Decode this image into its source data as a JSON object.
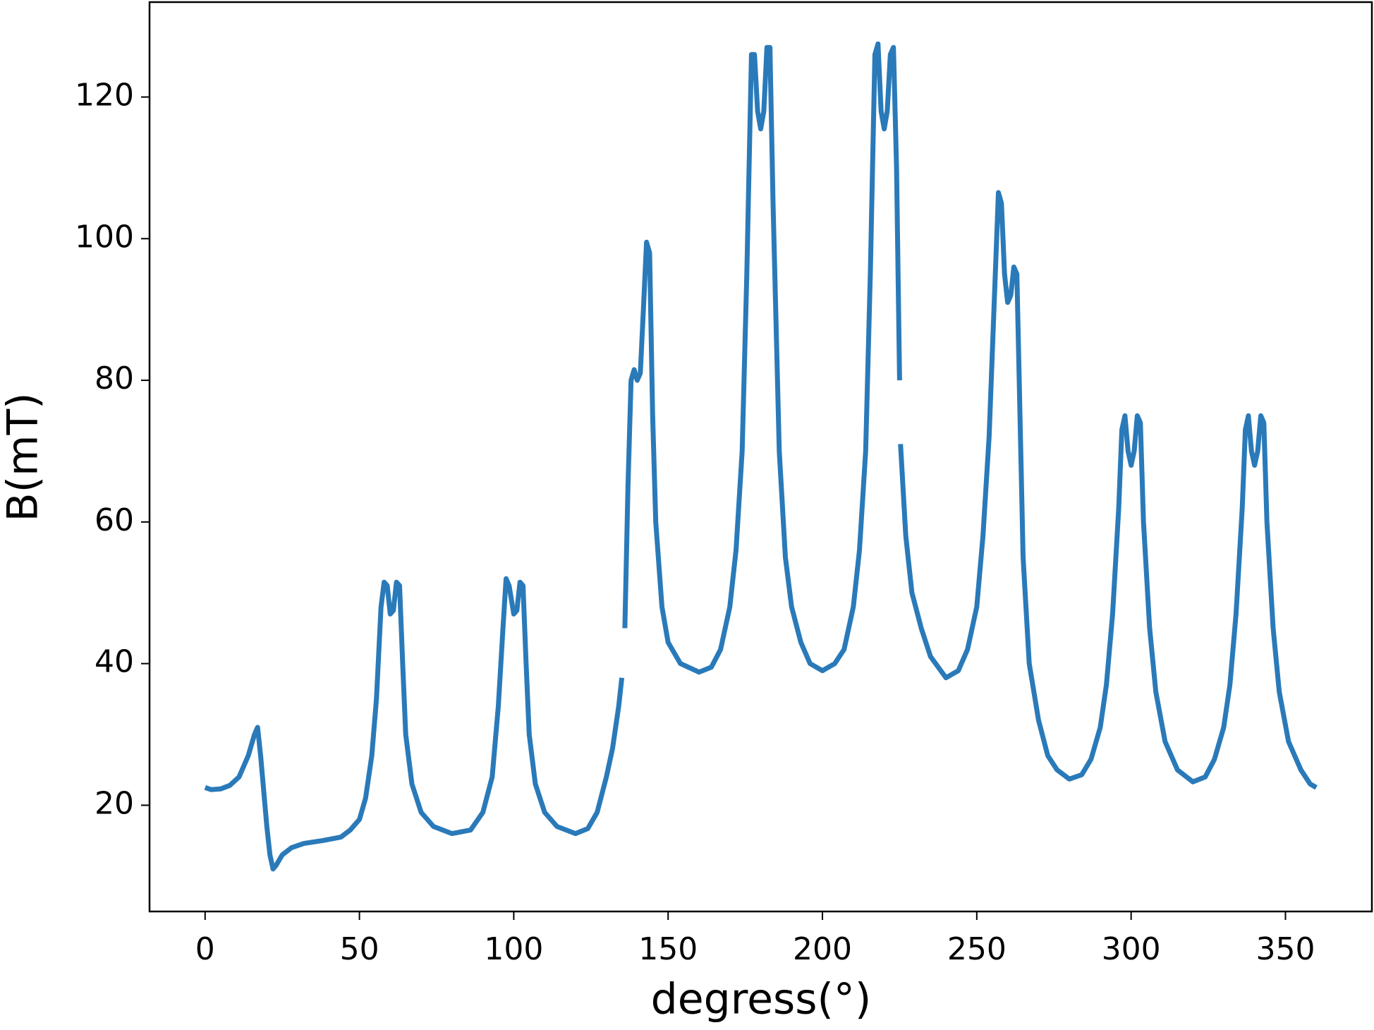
{
  "chart_data": {
    "type": "line",
    "xlabel": "degress(°)",
    "ylabel": "B(mT)",
    "xlim": [
      -18,
      378
    ],
    "ylim": [
      5.0,
      133.4
    ],
    "xticks": [
      0,
      50,
      100,
      150,
      200,
      250,
      300,
      350
    ],
    "yticks": [
      20,
      40,
      60,
      80,
      100,
      120
    ],
    "x": [
      0,
      2,
      5,
      8,
      11,
      14,
      16,
      17,
      18,
      19,
      20,
      21,
      22,
      23,
      25,
      28,
      32,
      38,
      44,
      47,
      50,
      52,
      54,
      55.5,
      57,
      58,
      59,
      60,
      61,
      62,
      63,
      64,
      65,
      67,
      70,
      74,
      80,
      86,
      90,
      93,
      95,
      96.5,
      97.5,
      98.5,
      100,
      101,
      102,
      103,
      104,
      105,
      107,
      110,
      114,
      120,
      124,
      127,
      130,
      132,
      134,
      135,
      null,
      136,
      137,
      138,
      139,
      140,
      141,
      142,
      143,
      144,
      145,
      146,
      148,
      150,
      154,
      160,
      164,
      167,
      170,
      172,
      174,
      175.5,
      177,
      178,
      179,
      180,
      181,
      182,
      183,
      184,
      186,
      188,
      190,
      193,
      196,
      200,
      204,
      207,
      210,
      212,
      214,
      215.5,
      217,
      218,
      219,
      220,
      221,
      222,
      223,
      224,
      225,
      null,
      225.3,
      227,
      229,
      232,
      235,
      240,
      244,
      247,
      250,
      252,
      254,
      256,
      257,
      258,
      259,
      260,
      261,
      262,
      263,
      264,
      265,
      267,
      270,
      273,
      276,
      280,
      284,
      287,
      290,
      292,
      294,
      296,
      297,
      298,
      299,
      300,
      301,
      302,
      303,
      304,
      306,
      308,
      311,
      315,
      320,
      324,
      327,
      330,
      332,
      334,
      336,
      337,
      338,
      339,
      340,
      341,
      342,
      343,
      344,
      346,
      348,
      351,
      355,
      358,
      360
    ],
    "series": [
      {
        "color": "#2a7ab9",
        "values": [
          22.5,
          22.2,
          22.3,
          22.8,
          24,
          27,
          30,
          31,
          27,
          22,
          17,
          13,
          11,
          11.5,
          13,
          14,
          14.6,
          15,
          15.5,
          16.5,
          18,
          21,
          27,
          35,
          48,
          51.5,
          51,
          47,
          47.5,
          51.5,
          51,
          40,
          30,
          23,
          19,
          17,
          16,
          16.5,
          19,
          24,
          34,
          45,
          52,
          51,
          47,
          47.5,
          51.5,
          51,
          40,
          30,
          23,
          19,
          17,
          16,
          16.7,
          19,
          24,
          28,
          34,
          38,
          null,
          45,
          65,
          80,
          81.5,
          80,
          81,
          90,
          99.5,
          98,
          75,
          60,
          48,
          43,
          40,
          38.8,
          39.5,
          42,
          48,
          56,
          70,
          95,
          126,
          126,
          118,
          115.5,
          118,
          127,
          127,
          105,
          70,
          55,
          48,
          43,
          40,
          39,
          40,
          42,
          48,
          56,
          70,
          95,
          126,
          127.5,
          118,
          115.5,
          118,
          126,
          127,
          110,
          80,
          null,
          71,
          58,
          50,
          45,
          41,
          38,
          39,
          42,
          48,
          58,
          72,
          95,
          106.5,
          105,
          95,
          91,
          92,
          96,
          95,
          75,
          55,
          40,
          32,
          27,
          25,
          23.7,
          24.3,
          26.5,
          31,
          37,
          47,
          62,
          73,
          75,
          70,
          68,
          70,
          75,
          74,
          60,
          45,
          36,
          29,
          25,
          23.3,
          24,
          26.5,
          31,
          37,
          47,
          62,
          73,
          75,
          70,
          68,
          70,
          75,
          74,
          60,
          45,
          36,
          29,
          25,
          23,
          22.5
        ]
      }
    ]
  }
}
